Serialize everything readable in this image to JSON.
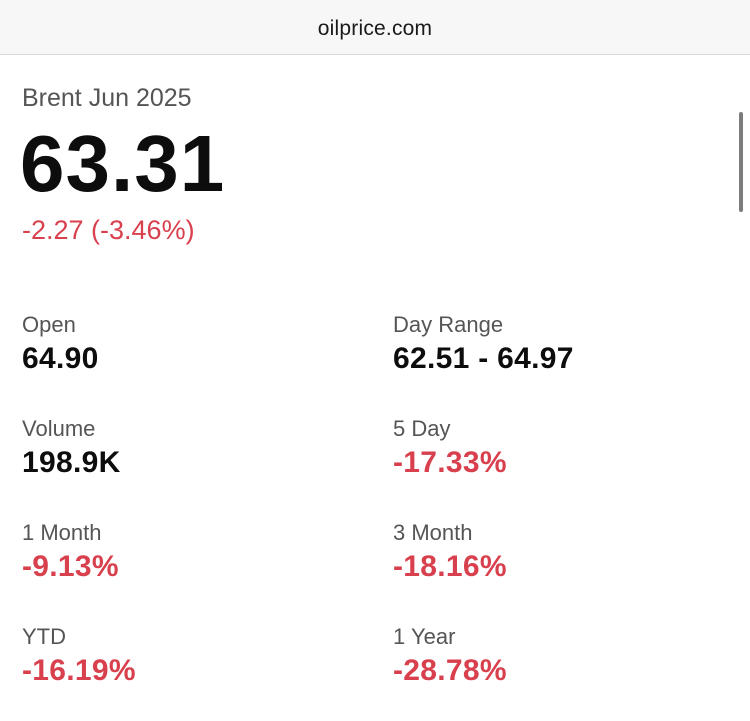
{
  "browser": {
    "url": "oilprice.com"
  },
  "quote": {
    "instrument": "Brent Jun 2025",
    "price": "63.31",
    "change": "-2.27 (-3.46%)"
  },
  "stats": {
    "open": {
      "label": "Open",
      "value": "64.90"
    },
    "day_range": {
      "label": "Day Range",
      "value": "62.51 - 64.97"
    },
    "volume": {
      "label": "Volume",
      "value": "198.9K"
    },
    "five_day": {
      "label": "5 Day",
      "value": "-17.33%"
    },
    "one_month": {
      "label": "1 Month",
      "value": "-9.13%"
    },
    "three_month": {
      "label": "3 Month",
      "value": "-18.16%"
    },
    "ytd": {
      "label": "YTD",
      "value": "-16.19%"
    },
    "one_year": {
      "label": "1 Year",
      "value": "-28.78%"
    }
  },
  "colors": {
    "negative": "#d8404e",
    "text": "#0d0d0d",
    "muted": "#555555"
  }
}
